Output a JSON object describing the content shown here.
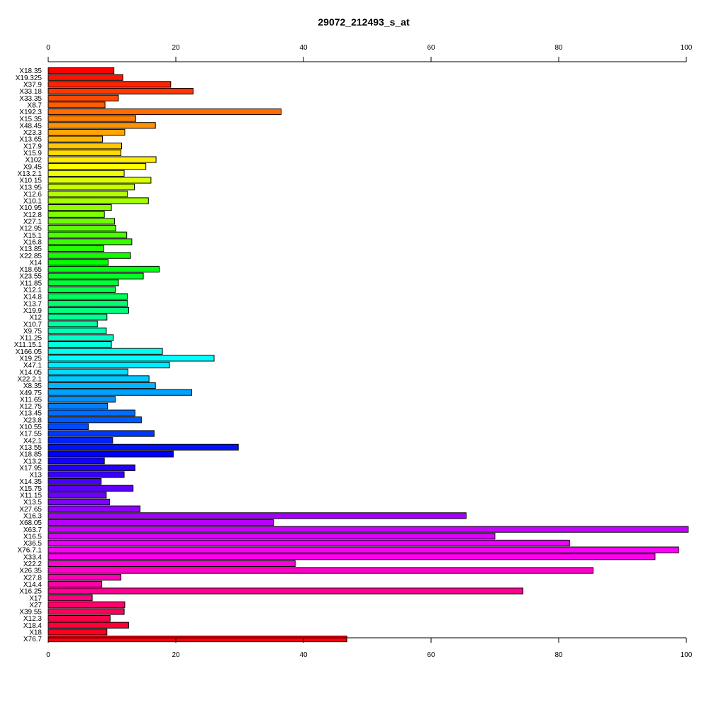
{
  "chart_data": {
    "type": "bar",
    "orientation": "horizontal",
    "title": "29072_212493_s_at",
    "xlabel": "",
    "ylabel": "",
    "xlim": [
      0,
      100
    ],
    "x_ticks": [
      0,
      20,
      40,
      60,
      80,
      100
    ],
    "x_tick_labels": [
      "0",
      "20",
      "40",
      "60",
      "80",
      "100"
    ],
    "axes": [
      "top",
      "bottom"
    ],
    "grid": false,
    "legend": "none",
    "color_scheme": "rainbow",
    "categories": [
      "X18.35",
      "X19.325",
      "X37.9",
      "X33.18",
      "X33.35",
      "X8.7",
      "X192.3",
      "X15.35",
      "X48.45",
      "X23.3",
      "X13.65",
      "X17.9",
      "X15.9",
      "X102",
      "X9.45",
      "X13.2.1",
      "X10.15",
      "X13.95",
      "X12.6",
      "X10.1",
      "X10.95",
      "X12.8",
      "X27.1",
      "X12.95",
      "X15.1",
      "X16.8",
      "X13.85",
      "X22.85",
      "X14",
      "X18.65",
      "X23.55",
      "X11.85",
      "X12.1",
      "X14.8",
      "X13.7",
      "X19.9",
      "X12",
      "X10.7",
      "X9.75",
      "X11.25",
      "X11.15.1",
      "X166.05",
      "X19.25",
      "X47.1",
      "X14.05",
      "X22.2.1",
      "X8.35",
      "X49.75",
      "X11.65",
      "X12.75",
      "X13.45",
      "X23.8",
      "X10.55",
      "X17.55",
      "X42.1",
      "X13.55",
      "X18.85",
      "X13.2",
      "X17.95",
      "X13",
      "X14.35",
      "X15.75",
      "X11.15",
      "X13.5",
      "X27.65",
      "X16.3",
      "X68.05",
      "X63.7",
      "X16.5",
      "X36.5",
      "X76.7.1",
      "X33.4",
      "X22.2",
      "X26.35",
      "X27.8",
      "X14.4",
      "X16.25",
      "X17",
      "X27",
      "X39.55",
      "X12.3",
      "X18.4",
      "X18",
      "X76.7"
    ],
    "values": [
      10.3,
      11.7,
      19.2,
      22.7,
      11.0,
      8.9,
      36.5,
      13.7,
      16.8,
      12.0,
      8.5,
      11.5,
      11.4,
      16.9,
      15.3,
      11.9,
      16.1,
      13.5,
      12.4,
      15.7,
      9.9,
      8.8,
      10.4,
      10.6,
      12.3,
      13.1,
      8.7,
      12.9,
      9.4,
      17.4,
      14.9,
      11.0,
      10.5,
      12.4,
      12.4,
      12.6,
      9.2,
      7.7,
      9.1,
      10.2,
      9.9,
      17.9,
      26.0,
      19.0,
      12.5,
      15.8,
      16.8,
      22.5,
      10.5,
      9.3,
      13.6,
      14.6,
      6.3,
      16.6,
      10.1,
      29.8,
      19.6,
      8.8,
      13.6,
      11.9,
      8.3,
      13.3,
      9.1,
      9.6,
      14.4,
      65.5,
      35.3,
      100.3,
      70.0,
      81.7,
      98.8,
      95.1,
      38.7,
      85.4,
      11.4,
      8.4,
      74.4,
      6.9,
      12.0,
      11.9,
      9.7,
      12.6,
      9.2,
      46.8
    ]
  }
}
